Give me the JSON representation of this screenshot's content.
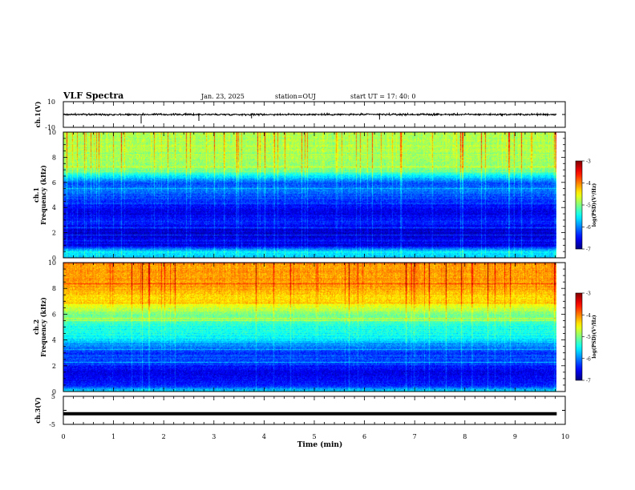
{
  "header": {
    "title": "VLF Spectra",
    "date": "Jan. 23, 2025",
    "station": "station=OUJ",
    "start_time": "start UT =  17: 40: 0"
  },
  "chart_data": [
    {
      "type": "line",
      "panel": "ch1-waveform",
      "ylabel": "ch.1(V)",
      "ylim": [
        -10,
        10
      ],
      "yticks": [
        "10",
        "-10"
      ],
      "x": [
        0,
        9.83
      ],
      "baseline": 0,
      "noise_amplitude": 1.0,
      "colors": {
        "trace": "#000000"
      }
    },
    {
      "type": "heatmap",
      "panel": "ch1-spectrogram",
      "ylabel": "ch.1\nFrequency (kHz)",
      "ylabel_lines": [
        "ch.1",
        "Frequency (kHz)"
      ],
      "ylim": [
        0,
        10
      ],
      "yticks": [
        0,
        2,
        4,
        6,
        8,
        10
      ],
      "xlim": [
        0,
        10
      ],
      "colorbar": {
        "label": "log(PSD)(V²/Hz)",
        "range": [
          -7,
          -3
        ],
        "ticks": [
          "-3",
          "-4",
          "-5",
          "-6",
          "-7"
        ]
      },
      "profile_freq_khz": [
        0,
        0.5,
        1,
        1.5,
        2,
        2.5,
        3,
        3.5,
        4,
        4.5,
        5,
        5.5,
        6,
        6.5,
        7,
        7.5,
        8,
        8.5,
        9,
        9.5,
        10
      ],
      "profile_log_psd": [
        -5.8,
        -5.5,
        -6.6,
        -6.5,
        -6.8,
        -6.5,
        -6.4,
        -6.6,
        -6.5,
        -6.3,
        -6.2,
        -6.0,
        -6.2,
        -5.6,
        -5.0,
        -4.9,
        -4.85,
        -4.8,
        -4.8,
        -4.8,
        -4.8
      ]
    },
    {
      "type": "heatmap",
      "panel": "ch2-spectrogram",
      "ylabel": "ch.2\nFrequency (kHz)",
      "ylabel_lines": [
        "ch.2",
        "Frequency (kHz)"
      ],
      "ylim": [
        0,
        10
      ],
      "yticks": [
        0,
        2,
        4,
        6,
        8,
        10
      ],
      "xlim": [
        0,
        10
      ],
      "colorbar": {
        "label": "log(PSD)(V²/Hz)",
        "range": [
          -7,
          -3
        ],
        "ticks": [
          "-3",
          "-4",
          "-5",
          "-6",
          "-7"
        ]
      },
      "profile_freq_khz": [
        0,
        0.5,
        1,
        1.5,
        2,
        2.5,
        3,
        3.5,
        4,
        4.5,
        5,
        5.5,
        6,
        6.5,
        7,
        7.5,
        8,
        8.5,
        9,
        9.5,
        10
      ],
      "profile_log_psd": [
        -5.5,
        -6.4,
        -6.5,
        -6.6,
        -6.4,
        -6.2,
        -6.3,
        -6.0,
        -5.6,
        -5.4,
        -5.4,
        -5.2,
        -5.0,
        -4.7,
        -4.4,
        -4.3,
        -4.15,
        -4.1,
        -4.1,
        -4.1,
        -4.1
      ]
    },
    {
      "type": "line",
      "panel": "ch3-waveform",
      "ylabel": "ch.3(V)",
      "ylim": [
        -5,
        5
      ],
      "yticks": [
        "5",
        "-5"
      ],
      "x": [
        0,
        9.83
      ],
      "baseline": -1.2,
      "colors": {
        "trace": "#000000"
      }
    }
  ],
  "xaxis": {
    "label": "Time  (min)",
    "range": [
      0,
      10
    ],
    "ticks": [
      "0",
      "1",
      "2",
      "3",
      "4",
      "5",
      "6",
      "7",
      "8",
      "9",
      "10"
    ]
  }
}
